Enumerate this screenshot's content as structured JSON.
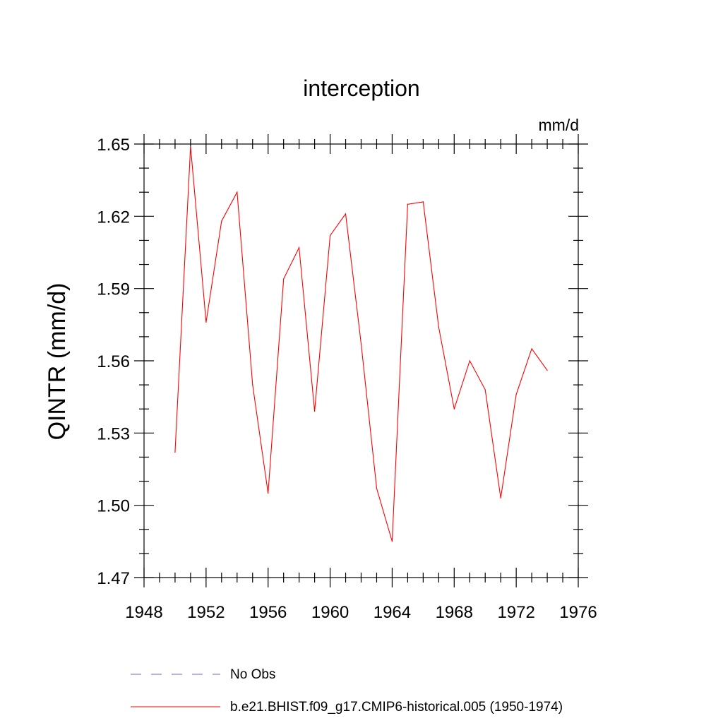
{
  "chart_data": {
    "type": "line",
    "title": "interception",
    "units": "mm/d",
    "xlabel": "",
    "ylabel": "QINTR  (mm/d)",
    "xlim": [
      1948,
      1976
    ],
    "ylim": [
      1.47,
      1.65
    ],
    "x_ticks": [
      1948,
      1952,
      1956,
      1960,
      1964,
      1968,
      1972,
      1976
    ],
    "y_ticks": [
      1.47,
      1.5,
      1.53,
      1.56,
      1.59,
      1.62,
      1.65
    ],
    "y_tick_labels": [
      "1.47",
      "1.50",
      "1.53",
      "1.56",
      "1.59",
      "1.62",
      "1.65"
    ],
    "grid": false,
    "legend_position": "bottom",
    "legend": [
      {
        "label": "No Obs",
        "color": "#6a6ab8",
        "style": "dashed"
      },
      {
        "label": "b.e21.BHIST.f09_g17.CMIP6-historical.005 (1950-1974)",
        "color": "#ff0000",
        "style": "solid"
      }
    ],
    "series": [
      {
        "name": "b.e21.BHIST.f09_g17.CMIP6-historical.005 (1950-1974)",
        "color": "#ff0000",
        "x": [
          1950,
          1951,
          1952,
          1953,
          1954,
          1955,
          1956,
          1957,
          1958,
          1959,
          1960,
          1961,
          1962,
          1963,
          1964,
          1965,
          1966,
          1967,
          1968,
          1969,
          1970,
          1971,
          1972,
          1973,
          1974
        ],
        "values": [
          1.522,
          1.649,
          1.576,
          1.618,
          1.63,
          1.55,
          1.505,
          1.594,
          1.607,
          1.539,
          1.612,
          1.621,
          1.567,
          1.507,
          1.485,
          1.625,
          1.626,
          1.574,
          1.54,
          1.56,
          1.548,
          1.503,
          1.546,
          1.565,
          1.556
        ]
      }
    ]
  }
}
